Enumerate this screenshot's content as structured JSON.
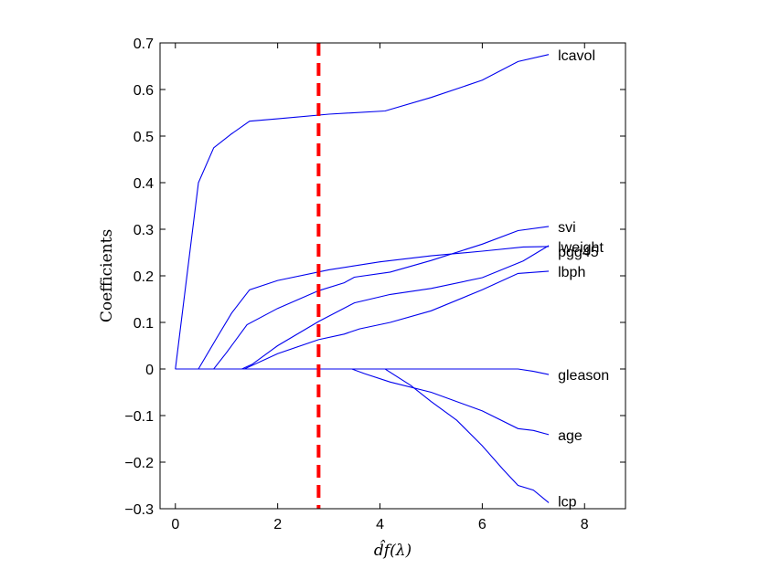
{
  "chart_data": {
    "type": "line",
    "title": "",
    "xlabel": "d̂f(λ)",
    "ylabel": "Coefficients",
    "xlim": [
      -0.3,
      8.8
    ],
    "ylim": [
      -0.3,
      0.7
    ],
    "xticks": [
      0,
      2,
      4,
      6,
      8
    ],
    "yticks": [
      -0.3,
      -0.2,
      -0.1,
      0,
      0.1,
      0.2,
      0.3,
      0.4,
      0.5,
      0.6,
      0.7
    ],
    "ytick_labels": [
      "−0.3",
      "−0.2",
      "−0.1",
      "0",
      "0.1",
      "0.2",
      "0.3",
      "0.4",
      "0.5",
      "0.6",
      "0.7"
    ],
    "grid": false,
    "line_color": "#0000ee",
    "vline": {
      "x": 2.8,
      "color": "#ff0000",
      "style": "dashed"
    },
    "series": [
      {
        "name": "lcavol",
        "x": [
          0,
          0.45,
          0.75,
          1.1,
          1.45,
          2.0,
          3.0,
          4.1,
          5.0,
          6.0,
          6.7,
          7.3
        ],
        "y": [
          0,
          0.4,
          0.475,
          0.505,
          0.532,
          0.537,
          0.547,
          0.554,
          0.583,
          0.62,
          0.66,
          0.675
        ]
      },
      {
        "name": "svi",
        "x": [
          0,
          0.75,
          1.0,
          1.4,
          2.0,
          2.8,
          3.3,
          3.5,
          4.2,
          5.0,
          6.0,
          6.7,
          7.3
        ],
        "y": [
          0,
          0,
          0.035,
          0.095,
          0.13,
          0.168,
          0.185,
          0.197,
          0.208,
          0.233,
          0.268,
          0.297,
          0.306
        ]
      },
      {
        "name": "lweight",
        "x": [
          0,
          0.45,
          0.8,
          1.1,
          1.45,
          2.0,
          3.0,
          4.0,
          5.0,
          6.0,
          6.8,
          7.3
        ],
        "y": [
          0,
          0,
          0.065,
          0.12,
          0.17,
          0.19,
          0.213,
          0.23,
          0.243,
          0.253,
          0.262,
          0.263
        ]
      },
      {
        "name": "pgg45",
        "x": [
          0,
          1.3,
          1.5,
          2.0,
          2.8,
          3.5,
          4.2,
          5.0,
          6.0,
          6.8,
          7.3
        ],
        "y": [
          0,
          0,
          0.01,
          0.05,
          0.102,
          0.142,
          0.16,
          0.173,
          0.196,
          0.232,
          0.265
        ]
      },
      {
        "name": "lbph",
        "x": [
          0,
          1.35,
          2.0,
          2.8,
          3.3,
          3.6,
          4.2,
          5.0,
          6.0,
          6.7,
          7.3
        ],
        "y": [
          0,
          0,
          0.033,
          0.063,
          0.075,
          0.086,
          0.1,
          0.125,
          0.17,
          0.205,
          0.21
        ]
      },
      {
        "name": "gleason",
        "x": [
          0,
          6.7,
          7.0,
          7.3
        ],
        "y": [
          0,
          0,
          -0.005,
          -0.012
        ]
      },
      {
        "name": "age",
        "x": [
          0,
          3.45,
          3.7,
          4.2,
          5.0,
          6.0,
          6.7,
          7.0,
          7.3
        ],
        "y": [
          0,
          0,
          -0.01,
          -0.028,
          -0.05,
          -0.09,
          -0.128,
          -0.132,
          -0.141
        ]
      },
      {
        "name": "lcp",
        "x": [
          0,
          4.1,
          4.6,
          5.0,
          5.5,
          6.0,
          6.4,
          6.7,
          7.0,
          7.3
        ],
        "y": [
          0,
          0,
          -0.035,
          -0.07,
          -0.11,
          -0.165,
          -0.215,
          -0.25,
          -0.26,
          -0.287
        ]
      }
    ]
  }
}
